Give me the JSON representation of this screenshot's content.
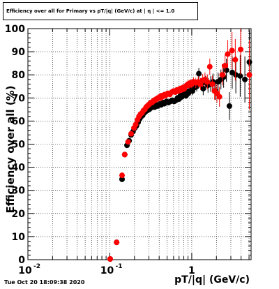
{
  "footer": {
    "timestamp": "Tue Oct 20 18:09:38 2020"
  },
  "chart_data": {
    "type": "scatter",
    "title": "Efficiency over all for Primary vs pT/|q| (GeV/c) at | η | <= 1.0",
    "xlabel": "pT/|q| (GeV/c)",
    "ylabel": "Efficiency over all (%)",
    "xscale": "log",
    "xlim": [
      0.01,
      5.3
    ],
    "ylim": [
      0,
      100
    ],
    "grid": true,
    "x_tick_labels": [
      {
        "v": 0.01,
        "base": "10",
        "exp": "-2"
      },
      {
        "v": 0.1,
        "base": "10",
        "exp": "-1"
      },
      {
        "v": 1,
        "base": "1",
        "exp": ""
      }
    ],
    "y_ticks": [
      0,
      10,
      20,
      30,
      40,
      50,
      60,
      70,
      80,
      90,
      100
    ],
    "series": [
      {
        "color": "#000000",
        "points": [
          [
            0.101,
            0.3,
            0.5
          ],
          [
            0.121,
            7.5,
            0.8
          ],
          [
            0.141,
            34.8,
            1.2
          ],
          [
            0.152,
            45.5,
            1.2
          ],
          [
            0.162,
            49.5,
            1.1
          ],
          [
            0.172,
            51.5,
            1.0
          ],
          [
            0.182,
            54.0,
            0.9
          ],
          [
            0.192,
            55.5,
            0.9
          ],
          [
            0.202,
            57.0,
            0.8
          ],
          [
            0.212,
            58.0,
            0.8
          ],
          [
            0.222,
            59.5,
            0.8
          ],
          [
            0.232,
            61.0,
            0.8
          ],
          [
            0.242,
            62.0,
            0.8
          ],
          [
            0.252,
            62.5,
            0.8
          ],
          [
            0.262,
            63.5,
            0.8
          ],
          [
            0.272,
            64.0,
            0.8
          ],
          [
            0.282,
            64.5,
            0.8
          ],
          [
            0.292,
            65.0,
            0.8
          ],
          [
            0.302,
            65.0,
            0.8
          ],
          [
            0.312,
            65.5,
            0.8
          ],
          [
            0.322,
            66.0,
            0.8
          ],
          [
            0.332,
            66.0,
            0.8
          ],
          [
            0.342,
            66.5,
            0.8
          ],
          [
            0.352,
            66.0,
            0.8
          ],
          [
            0.362,
            66.5,
            0.8
          ],
          [
            0.372,
            67.0,
            0.8
          ],
          [
            0.382,
            66.5,
            0.8
          ],
          [
            0.392,
            67.0,
            0.8
          ],
          [
            0.402,
            67.0,
            0.8
          ],
          [
            0.412,
            67.5,
            0.8
          ],
          [
            0.422,
            67.0,
            0.8
          ],
          [
            0.432,
            67.5,
            0.8
          ],
          [
            0.442,
            67.5,
            0.8
          ],
          [
            0.452,
            68.0,
            0.9
          ],
          [
            0.462,
            67.5,
            0.9
          ],
          [
            0.472,
            68.0,
            0.9
          ],
          [
            0.482,
            68.0,
            0.9
          ],
          [
            0.492,
            68.5,
            0.9
          ],
          [
            0.52,
            68.0,
            1.0
          ],
          [
            0.55,
            68.5,
            1.0
          ],
          [
            0.58,
            69.0,
            1.0
          ],
          [
            0.61,
            68.5,
            1.1
          ],
          [
            0.64,
            69.0,
            1.1
          ],
          [
            0.67,
            70.0,
            1.2
          ],
          [
            0.7,
            69.5,
            1.2
          ],
          [
            0.73,
            71.0,
            1.3
          ],
          [
            0.76,
            70.5,
            1.3
          ],
          [
            0.79,
            71.5,
            1.4
          ],
          [
            0.82,
            72.0,
            1.4
          ],
          [
            0.85,
            71.0,
            1.5
          ],
          [
            0.88,
            72.5,
            1.5
          ],
          [
            0.91,
            72.0,
            1.6
          ],
          [
            0.94,
            73.0,
            1.7
          ],
          [
            0.97,
            73.5,
            1.7
          ],
          [
            1.02,
            73.0,
            1.8
          ],
          [
            1.08,
            74.5,
            2.0
          ],
          [
            1.15,
            75.0,
            2.2
          ],
          [
            1.22,
            80.5,
            2.5
          ],
          [
            1.3,
            76.0,
            2.6
          ],
          [
            1.38,
            74.0,
            2.8
          ],
          [
            1.48,
            76.5,
            3.0
          ],
          [
            1.58,
            75.5,
            3.2
          ],
          [
            1.7,
            76.0,
            3.4
          ],
          [
            1.82,
            77.0,
            3.6
          ],
          [
            1.95,
            73.0,
            3.8
          ],
          [
            2.1,
            77.0,
            4.0
          ],
          [
            2.27,
            78.0,
            4.3
          ],
          [
            2.45,
            79.0,
            4.6
          ],
          [
            2.65,
            82.0,
            5.0
          ],
          [
            2.88,
            66.5,
            6.0
          ],
          [
            3.12,
            81.0,
            7.0
          ],
          [
            3.45,
            80.0,
            8.0
          ],
          [
            3.9,
            79.5,
            9.0
          ],
          [
            4.45,
            78.0,
            10.0
          ],
          [
            5.05,
            85.5,
            14.0
          ]
        ]
      },
      {
        "color": "#ff0000",
        "points": [
          [
            0.101,
            0.3,
            0.5
          ],
          [
            0.121,
            7.5,
            0.8
          ],
          [
            0.141,
            36.5,
            1.2
          ],
          [
            0.152,
            45.5,
            1.2
          ],
          [
            0.167,
            51.0,
            1.1
          ],
          [
            0.182,
            54.5,
            1.0
          ],
          [
            0.197,
            57.0,
            0.9
          ],
          [
            0.207,
            58.5,
            0.9
          ],
          [
            0.217,
            60.5,
            0.8
          ],
          [
            0.227,
            62.0,
            0.8
          ],
          [
            0.237,
            63.0,
            0.8
          ],
          [
            0.247,
            63.5,
            0.8
          ],
          [
            0.257,
            64.5,
            0.8
          ],
          [
            0.267,
            65.0,
            0.8
          ],
          [
            0.277,
            66.0,
            0.8
          ],
          [
            0.287,
            66.5,
            0.8
          ],
          [
            0.297,
            67.0,
            0.8
          ],
          [
            0.307,
            67.5,
            0.8
          ],
          [
            0.317,
            68.0,
            0.8
          ],
          [
            0.327,
            68.0,
            0.8
          ],
          [
            0.337,
            68.5,
            0.8
          ],
          [
            0.347,
            69.0,
            0.8
          ],
          [
            0.357,
            69.0,
            0.8
          ],
          [
            0.367,
            69.5,
            0.8
          ],
          [
            0.377,
            69.5,
            0.8
          ],
          [
            0.387,
            70.0,
            0.8
          ],
          [
            0.397,
            70.0,
            0.8
          ],
          [
            0.407,
            70.5,
            0.8
          ],
          [
            0.417,
            70.0,
            0.8
          ],
          [
            0.427,
            71.0,
            0.8
          ],
          [
            0.437,
            70.5,
            0.8
          ],
          [
            0.447,
            71.0,
            0.9
          ],
          [
            0.457,
            71.0,
            0.9
          ],
          [
            0.467,
            71.5,
            0.9
          ],
          [
            0.477,
            71.0,
            0.9
          ],
          [
            0.487,
            71.5,
            0.9
          ],
          [
            0.51,
            72.0,
            1.0
          ],
          [
            0.54,
            71.5,
            1.0
          ],
          [
            0.57,
            72.5,
            1.0
          ],
          [
            0.6,
            73.0,
            1.1
          ],
          [
            0.63,
            72.5,
            1.1
          ],
          [
            0.66,
            73.5,
            1.2
          ],
          [
            0.69,
            73.0,
            1.2
          ],
          [
            0.72,
            74.0,
            1.3
          ],
          [
            0.75,
            73.5,
            1.3
          ],
          [
            0.78,
            74.5,
            1.4
          ],
          [
            0.81,
            74.0,
            1.4
          ],
          [
            0.84,
            75.0,
            1.5
          ],
          [
            0.87,
            75.5,
            1.5
          ],
          [
            0.9,
            76.0,
            1.6
          ],
          [
            0.93,
            75.5,
            1.6
          ],
          [
            0.96,
            76.5,
            1.7
          ],
          [
            1.0,
            76.0,
            1.8
          ],
          [
            1.05,
            77.0,
            2.0
          ],
          [
            1.12,
            76.5,
            2.2
          ],
          [
            1.2,
            77.0,
            2.4
          ],
          [
            1.28,
            76.0,
            2.6
          ],
          [
            1.36,
            77.5,
            2.8
          ],
          [
            1.45,
            78.0,
            3.0
          ],
          [
            1.55,
            77.0,
            3.2
          ],
          [
            1.66,
            83.5,
            3.5
          ],
          [
            1.78,
            76.0,
            3.6
          ],
          [
            1.9,
            73.0,
            3.8
          ],
          [
            2.03,
            72.0,
            4.0
          ],
          [
            2.18,
            70.5,
            4.3
          ],
          [
            2.35,
            80.0,
            4.6
          ],
          [
            2.55,
            84.0,
            5.0
          ],
          [
            2.75,
            89.0,
            6.0
          ],
          [
            3.1,
            90.5,
            8.0
          ],
          [
            3.4,
            86.5,
            9.0
          ],
          [
            3.95,
            91.0,
            11.0
          ],
          [
            5.05,
            80.0,
            15.0
          ]
        ]
      }
    ]
  }
}
